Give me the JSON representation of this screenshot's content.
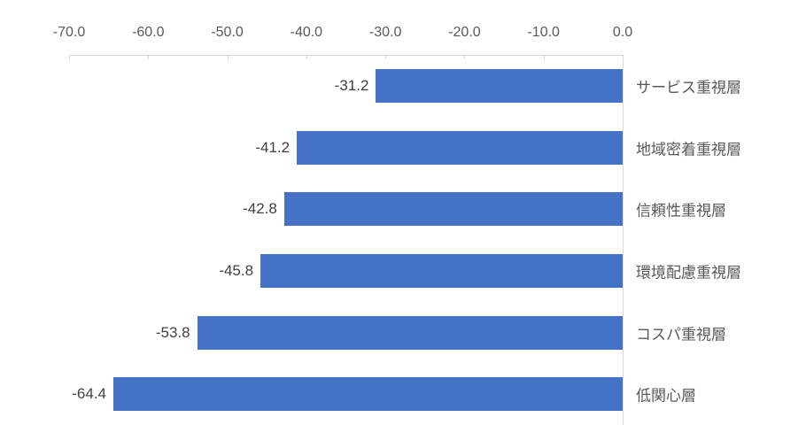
{
  "chart_data": {
    "type": "bar",
    "orientation": "horizontal",
    "title": "",
    "xlabel": "",
    "ylabel": "",
    "xlim": [
      -70,
      0
    ],
    "x_tick_labels": [
      "-70.0",
      "-60.0",
      "-50.0",
      "-40.0",
      "-30.0",
      "-20.0",
      "-10.0",
      "0.0"
    ],
    "x_tick_values": [
      -70,
      -60,
      -50,
      -40,
      -30,
      -20,
      -10,
      0
    ],
    "categories": [
      "サービス重視層",
      "地域密着重視層",
      "信頼性重視層",
      "環境配慮重視層",
      "コスパ重視層",
      "低関心層"
    ],
    "values": [
      -31.2,
      -41.2,
      -42.8,
      -45.8,
      -53.8,
      -64.4
    ],
    "value_labels": [
      "-31.2",
      "-41.2",
      "-42.8",
      "-45.8",
      "-53.8",
      "-64.4"
    ],
    "legend_position": "none",
    "grid": false,
    "axis_position": "top",
    "colors": {
      "bar_fill": "#4472C4",
      "axis_line": "#D9D9D9",
      "tick_label": "#595959",
      "value_label": "#404040",
      "category_label": "#595959",
      "background": "#FFFFFF"
    }
  }
}
